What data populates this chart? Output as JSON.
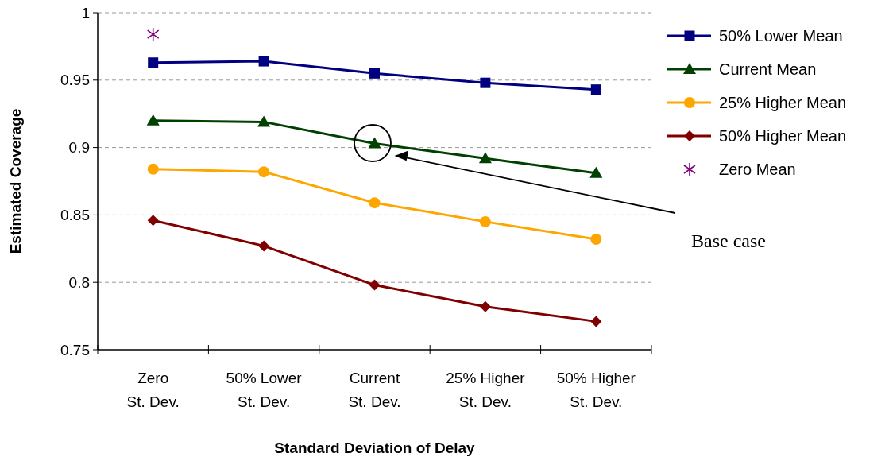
{
  "chart_data": {
    "type": "line",
    "xlabel": "Standard Deviation of Delay",
    "ylabel": "Estimated Coverage",
    "categories": [
      "Zero\nSt. Dev.",
      "50% Lower\nSt. Dev.",
      "Current\nSt. Dev.",
      "25% Higher\nSt. Dev.",
      "50% Higher\nSt. Dev."
    ],
    "series": [
      {
        "name": "50% Lower Mean",
        "color": "#000080",
        "marker": "square",
        "values": [
          0.963,
          0.964,
          0.955,
          0.948,
          0.943
        ]
      },
      {
        "name": "Current Mean",
        "color": "#004000",
        "marker": "triangle",
        "values": [
          0.92,
          0.919,
          0.903,
          0.892,
          0.881
        ]
      },
      {
        "name": "25% Higher Mean",
        "color": "#ffa500",
        "marker": "circle",
        "values": [
          0.884,
          0.882,
          0.859,
          0.845,
          0.832
        ]
      },
      {
        "name": "50% Higher Mean",
        "color": "#800000",
        "marker": "diamond",
        "values": [
          0.846,
          0.827,
          0.798,
          0.782,
          0.771
        ]
      },
      {
        "name": "Zero Mean",
        "type": "scatter",
        "color": "#800080",
        "marker": "cross",
        "values": [
          0.984,
          null,
          null,
          null,
          null
        ]
      }
    ],
    "ylim": [
      0.75,
      1
    ],
    "yticks": [
      0.75,
      0.8,
      0.85,
      0.9,
      0.95,
      1
    ],
    "grid": "y",
    "legend": "right",
    "annotations": [
      "Base case"
    ]
  }
}
